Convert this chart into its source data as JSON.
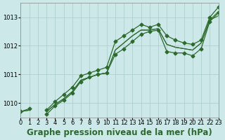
{
  "bg_color": "#cce8e8",
  "grid_color": "#aacccc",
  "line_color": "#2d6a2d",
  "marker": "D",
  "marker_size": 2.5,
  "title": "Graphe pression niveau de la mer (hPa)",
  "xlim": [
    0,
    23
  ],
  "ylim": [
    1009.5,
    1013.5
  ],
  "yticks": [
    1010,
    1011,
    1012,
    1013
  ],
  "xticks": [
    0,
    1,
    2,
    3,
    4,
    5,
    6,
    7,
    8,
    9,
    10,
    11,
    12,
    13,
    14,
    15,
    16,
    17,
    18,
    19,
    20,
    21,
    22,
    23
  ],
  "series": [
    {
      "data": [
        1009.7,
        1009.8,
        null,
        1009.75,
        1010.05,
        1010.3,
        1010.55,
        1010.95,
        1011.05,
        1011.15,
        1011.25,
        1012.15,
        1012.35,
        1012.55,
        1012.75,
        1012.65,
        1012.75,
        1012.35,
        1012.2,
        1012.1,
        1012.05,
        1012.2,
        1013.0,
        1013.35
      ],
      "has_markers": true
    },
    {
      "data": [
        1009.7,
        null,
        null,
        1009.6,
        1009.9,
        1010.1,
        1010.35,
        1010.75,
        1010.9,
        1011.0,
        1011.05,
        1011.7,
        1011.9,
        1012.15,
        1012.4,
        1012.5,
        1012.55,
        1011.8,
        1011.75,
        1011.75,
        1011.65,
        1011.9,
        1012.85,
        1013.15
      ],
      "has_markers": true
    },
    {
      "data": [
        1009.7,
        1009.75,
        null,
        1009.7,
        1009.95,
        1010.15,
        1010.4,
        1010.8,
        1010.9,
        1011.0,
        1011.05,
        1011.85,
        1012.1,
        1012.35,
        1012.55,
        1012.55,
        1012.6,
        1012.05,
        1011.95,
        1011.9,
        1011.85,
        1012.1,
        1012.9,
        1013.2
      ],
      "has_markers": false
    },
    {
      "data": [
        1009.7,
        1009.75,
        null,
        1009.7,
        1009.95,
        1010.15,
        1010.4,
        1010.8,
        1010.9,
        1011.0,
        1011.05,
        1011.85,
        1012.1,
        1012.35,
        1012.55,
        1012.55,
        1012.6,
        1012.05,
        1011.95,
        1011.9,
        1011.85,
        1012.1,
        1012.9,
        1013.05
      ],
      "has_markers": false
    }
  ],
  "title_fontsize": 8.5,
  "tick_fontsize": 6.0
}
